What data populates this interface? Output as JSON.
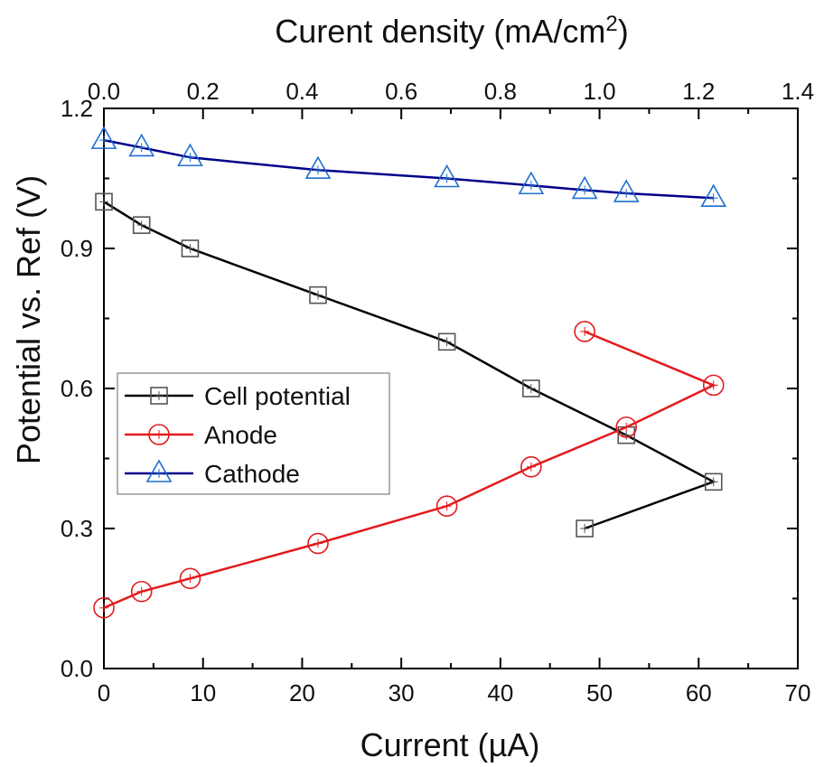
{
  "chart_data": {
    "type": "line",
    "xlabel": "Current (µA)",
    "ylabel": "Potential vs. Ref (V)",
    "x2label": {
      "main": "Curent density (mA/cm",
      "sup": "2",
      "end": ")"
    },
    "xlim": [
      0,
      70
    ],
    "ylim": [
      0.0,
      1.2
    ],
    "x2lim": [
      0.0,
      1.4
    ],
    "xticks": [
      "0",
      "10",
      "20",
      "30",
      "40",
      "50",
      "60",
      "70"
    ],
    "yticks": [
      "0.0",
      "0.3",
      "0.6",
      "0.9",
      "1.2"
    ],
    "x2ticks": [
      "0.0",
      "0.2",
      "0.4",
      "0.6",
      "0.8",
      "1.0",
      "1.2",
      "1.4"
    ],
    "grid": false,
    "legend_position": "center-left",
    "series": [
      {
        "name": "Cell potential",
        "marker": "square",
        "line_color": "#000000",
        "marker_color": "#555555",
        "points": [
          {
            "x": 0,
            "y": 1.0
          },
          {
            "x": 3.8,
            "y": 0.95
          },
          {
            "x": 8.7,
            "y": 0.9
          },
          {
            "x": 21.6,
            "y": 0.8
          },
          {
            "x": 34.6,
            "y": 0.7
          },
          {
            "x": 43.1,
            "y": 0.6
          },
          {
            "x": 52.7,
            "y": 0.5
          },
          {
            "x": 61.5,
            "y": 0.4
          },
          {
            "x": 48.5,
            "y": 0.3
          }
        ]
      },
      {
        "name": "Anode",
        "marker": "circle",
        "line_color": "#e31a1c",
        "marker_color": "#e31a1c",
        "points": [
          {
            "x": 0,
            "y": 0.13
          },
          {
            "x": 3.8,
            "y": 0.165
          },
          {
            "x": 8.7,
            "y": 0.193
          },
          {
            "x": 21.6,
            "y": 0.268
          },
          {
            "x": 34.6,
            "y": 0.348
          },
          {
            "x": 43.1,
            "y": 0.432
          },
          {
            "x": 52.7,
            "y": 0.517
          },
          {
            "x": 61.5,
            "y": 0.607
          },
          {
            "x": 48.5,
            "y": 0.722
          }
        ]
      },
      {
        "name": "Cathode",
        "marker": "triangle",
        "line_color": "#00008b",
        "marker_color": "#1f6fd0",
        "points": [
          {
            "x": 0,
            "y": 1.132
          },
          {
            "x": 3.8,
            "y": 1.116
          },
          {
            "x": 8.7,
            "y": 1.095
          },
          {
            "x": 21.6,
            "y": 1.068
          },
          {
            "x": 34.6,
            "y": 1.05
          },
          {
            "x": 43.1,
            "y": 1.035
          },
          {
            "x": 48.5,
            "y": 1.025
          },
          {
            "x": 52.7,
            "y": 1.018
          },
          {
            "x": 61.5,
            "y": 1.008
          }
        ]
      }
    ]
  }
}
